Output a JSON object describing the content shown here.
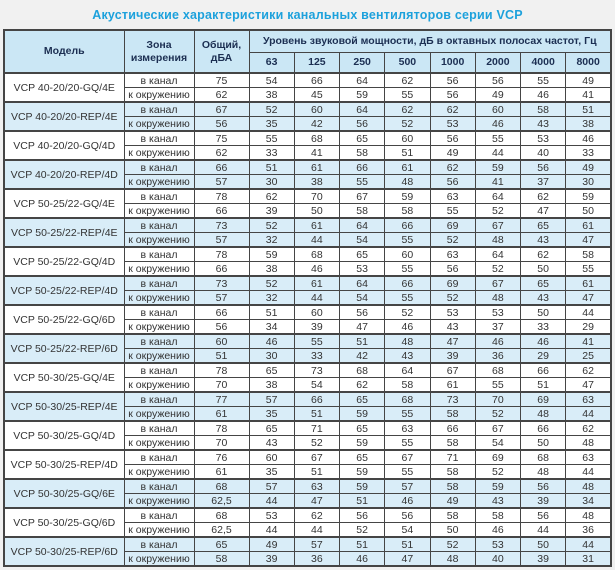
{
  "title": "Акустические характеристики канальных вентиляторов  серии VCP",
  "colors": {
    "title_accent": "#1da1dc",
    "header_bg": "#cbe7f5",
    "highlight_row_bg": "#d9edf8",
    "border": "#454545"
  },
  "table": {
    "headers": {
      "model": "Модель",
      "zone": "Зона измерения",
      "total": "Общий, дБА",
      "spectrum": "Уровень звуковой мощности, дБ в октавных полосах частот, Гц",
      "frequencies": [
        "63",
        "125",
        "250",
        "500",
        "1000",
        "2000",
        "4000",
        "8000"
      ]
    },
    "zone_labels": [
      "в канал",
      "к окружению"
    ],
    "groups": [
      {
        "model": "VCP 40-20/20-GQ/4E",
        "highlight": false,
        "rows": [
          {
            "total": "75",
            "bands": [
              "54",
              "66",
              "64",
              "62",
              "56",
              "56",
              "55",
              "49"
            ]
          },
          {
            "total": "62",
            "bands": [
              "38",
              "45",
              "59",
              "55",
              "56",
              "49",
              "46",
              "41"
            ]
          }
        ]
      },
      {
        "model": "VCP 40-20/20-REP/4E",
        "highlight": true,
        "rows": [
          {
            "total": "67",
            "bands": [
              "52",
              "60",
              "64",
              "62",
              "62",
              "60",
              "58",
              "51"
            ]
          },
          {
            "total": "56",
            "bands": [
              "35",
              "42",
              "56",
              "52",
              "53",
              "46",
              "43",
              "38"
            ]
          }
        ]
      },
      {
        "model": "VCP 40-20/20-GQ/4D",
        "highlight": false,
        "rows": [
          {
            "total": "75",
            "bands": [
              "55",
              "68",
              "65",
              "60",
              "56",
              "55",
              "53",
              "46"
            ]
          },
          {
            "total": "62",
            "bands": [
              "33",
              "41",
              "58",
              "51",
              "49",
              "44",
              "40",
              "33"
            ]
          }
        ]
      },
      {
        "model": "VCP 40-20/20-REP/4D",
        "highlight": true,
        "rows": [
          {
            "total": "66",
            "bands": [
              "51",
              "61",
              "66",
              "61",
              "62",
              "59",
              "56",
              "49"
            ]
          },
          {
            "total": "57",
            "bands": [
              "30",
              "38",
              "55",
              "48",
              "56",
              "41",
              "37",
              "30"
            ]
          }
        ]
      },
      {
        "model": "VCP 50-25/22-GQ/4E",
        "highlight": false,
        "rows": [
          {
            "total": "78",
            "bands": [
              "62",
              "70",
              "67",
              "59",
              "63",
              "64",
              "62",
              "59"
            ]
          },
          {
            "total": "66",
            "bands": [
              "39",
              "50",
              "58",
              "58",
              "55",
              "52",
              "47",
              "50"
            ]
          }
        ]
      },
      {
        "model": "VCP 50-25/22-REP/4E",
        "highlight": true,
        "rows": [
          {
            "total": "73",
            "bands": [
              "52",
              "61",
              "64",
              "66",
              "69",
              "67",
              "65",
              "61"
            ]
          },
          {
            "total": "57",
            "bands": [
              "32",
              "44",
              "54",
              "55",
              "52",
              "48",
              "43",
              "47"
            ]
          }
        ]
      },
      {
        "model": "VCP 50-25/22-GQ/4D",
        "highlight": false,
        "rows": [
          {
            "total": "78",
            "bands": [
              "59",
              "68",
              "65",
              "60",
              "63",
              "64",
              "62",
              "58"
            ]
          },
          {
            "total": "66",
            "bands": [
              "38",
              "46",
              "53",
              "55",
              "56",
              "52",
              "50",
              "55"
            ]
          }
        ]
      },
      {
        "model": "VCP 50-25/22-REP/4D",
        "highlight": true,
        "rows": [
          {
            "total": "73",
            "bands": [
              "52",
              "61",
              "64",
              "66",
              "69",
              "67",
              "65",
              "61"
            ]
          },
          {
            "total": "57",
            "bands": [
              "32",
              "44",
              "54",
              "55",
              "52",
              "48",
              "43",
              "47"
            ]
          }
        ]
      },
      {
        "model": "VCP 50-25/22-GQ/6D",
        "highlight": false,
        "rows": [
          {
            "total": "66",
            "bands": [
              "51",
              "60",
              "56",
              "52",
              "53",
              "53",
              "50",
              "44"
            ]
          },
          {
            "total": "56",
            "bands": [
              "34",
              "39",
              "47",
              "46",
              "43",
              "37",
              "33",
              "29"
            ]
          }
        ]
      },
      {
        "model": "VCP 50-25/22-REP/6D",
        "highlight": true,
        "rows": [
          {
            "total": "60",
            "bands": [
              "46",
              "55",
              "51",
              "48",
              "47",
              "46",
              "46",
              "41"
            ]
          },
          {
            "total": "51",
            "bands": [
              "30",
              "33",
              "42",
              "43",
              "39",
              "36",
              "29",
              "25"
            ]
          }
        ]
      },
      {
        "model": "VCP 50-30/25-GQ/4E",
        "highlight": false,
        "rows": [
          {
            "total": "78",
            "bands": [
              "65",
              "73",
              "68",
              "64",
              "67",
              "68",
              "66",
              "62"
            ]
          },
          {
            "total": "70",
            "bands": [
              "38",
              "54",
              "62",
              "58",
              "61",
              "55",
              "51",
              "47"
            ]
          }
        ]
      },
      {
        "model": "VCP 50-30/25-REP/4E",
        "highlight": true,
        "rows": [
          {
            "total": "77",
            "bands": [
              "57",
              "66",
              "65",
              "68",
              "73",
              "70",
              "69",
              "63"
            ]
          },
          {
            "total": "61",
            "bands": [
              "35",
              "51",
              "59",
              "55",
              "58",
              "52",
              "48",
              "44"
            ]
          }
        ]
      },
      {
        "model": "VCP 50-30/25-GQ/4D",
        "highlight": false,
        "rows": [
          {
            "total": "78",
            "bands": [
              "65",
              "71",
              "65",
              "63",
              "66",
              "67",
              "66",
              "62"
            ]
          },
          {
            "total": "70",
            "bands": [
              "43",
              "52",
              "59",
              "55",
              "58",
              "54",
              "50",
              "48"
            ]
          }
        ]
      },
      {
        "model": "VCP 50-30/25-REP/4D",
        "highlight": false,
        "rows": [
          {
            "total": "76",
            "bands": [
              "60",
              "67",
              "65",
              "67",
              "71",
              "69",
              "68",
              "63"
            ]
          },
          {
            "total": "61",
            "bands": [
              "35",
              "51",
              "59",
              "55",
              "58",
              "52",
              "48",
              "44"
            ]
          }
        ]
      },
      {
        "model": "VCP 50-30/25-GQ/6E",
        "highlight": true,
        "rows": [
          {
            "total": "68",
            "bands": [
              "57",
              "63",
              "59",
              "57",
              "58",
              "59",
              "56",
              "48"
            ]
          },
          {
            "total": "62,5",
            "bands": [
              "44",
              "47",
              "51",
              "46",
              "49",
              "43",
              "39",
              "34"
            ]
          }
        ]
      },
      {
        "model": "VCP 50-30/25-GQ/6D",
        "highlight": false,
        "rows": [
          {
            "total": "68",
            "bands": [
              "53",
              "62",
              "56",
              "56",
              "58",
              "58",
              "56",
              "48"
            ]
          },
          {
            "total": "62,5",
            "bands": [
              "44",
              "44",
              "52",
              "54",
              "50",
              "46",
              "44",
              "36"
            ]
          }
        ]
      },
      {
        "model": "VCP 50-30/25-REP/6D",
        "highlight": true,
        "rows": [
          {
            "total": "65",
            "bands": [
              "49",
              "57",
              "51",
              "51",
              "52",
              "53",
              "50",
              "44"
            ]
          },
          {
            "total": "58",
            "bands": [
              "39",
              "36",
              "46",
              "47",
              "48",
              "40",
              "39",
              "31"
            ]
          }
        ]
      }
    ]
  }
}
